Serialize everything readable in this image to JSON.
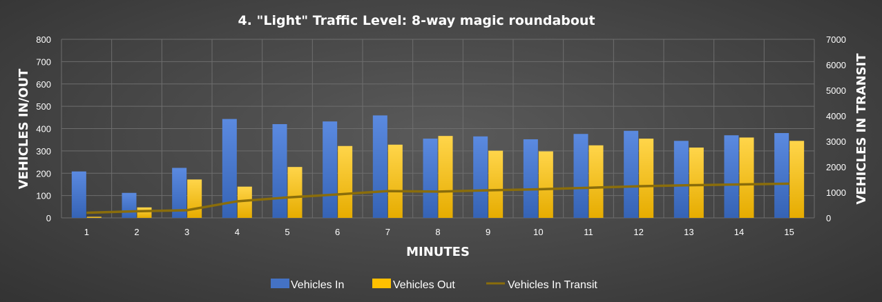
{
  "chart_data": {
    "type": "bar",
    "title": "4. \"Light\" Traffic Level: 8-way magic roundabout",
    "xlabel": "MINUTES",
    "ylabel": "VEHICLES IN/OUT",
    "y2label": "VEHICLES IN TRANSIT",
    "categories": [
      "1",
      "2",
      "3",
      "4",
      "5",
      "6",
      "7",
      "8",
      "9",
      "10",
      "11",
      "12",
      "13",
      "14",
      "15"
    ],
    "ylim": [
      0,
      800
    ],
    "y2lim": [
      0,
      7000
    ],
    "yticks": [
      "0",
      "100",
      "200",
      "300",
      "400",
      "500",
      "600",
      "700",
      "800"
    ],
    "y2ticks": [
      "0",
      "1000",
      "2000",
      "3000",
      "4000",
      "5000",
      "6000",
      "7000"
    ],
    "grid": true,
    "legend_position": "bottom",
    "series": [
      {
        "name": "Vehicles In",
        "kind": "bar",
        "axis": "left",
        "color": "#4472c4",
        "values": [
          208,
          112,
          224,
          443,
          420,
          432,
          459,
          355,
          365,
          352,
          376,
          390,
          345,
          370,
          380
        ]
      },
      {
        "name": "Vehicles Out",
        "kind": "bar",
        "axis": "left",
        "color": "#ffc000",
        "values": [
          5,
          47,
          172,
          140,
          228,
          322,
          328,
          367,
          301,
          298,
          325,
          355,
          315,
          360,
          345
        ]
      },
      {
        "name": "Vehicles In Transit",
        "kind": "line",
        "axis": "right",
        "color": "#8a6d0b",
        "values": [
          200,
          260,
          300,
          650,
          800,
          920,
          1050,
          1030,
          1080,
          1120,
          1180,
          1240,
          1280,
          1310,
          1340
        ]
      }
    ]
  }
}
